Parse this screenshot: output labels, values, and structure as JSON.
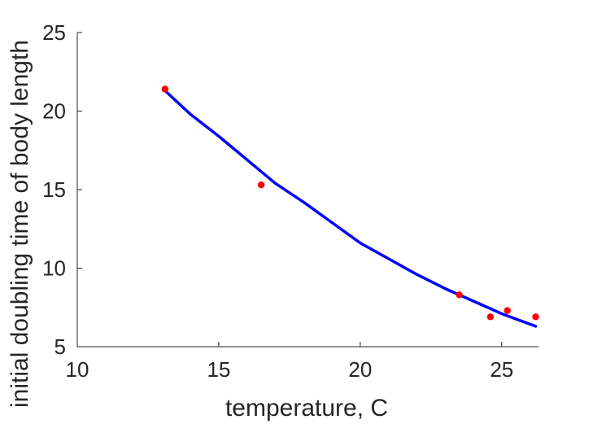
{
  "chart_data": {
    "type": "scatter",
    "xlabel": "temperature, C",
    "ylabel": "initial doubling time of body length",
    "xlim": [
      10,
      26.3
    ],
    "ylim": [
      5,
      25
    ],
    "x_ticks": [
      10,
      15,
      20,
      25
    ],
    "y_ticks": [
      5,
      10,
      15,
      20,
      25
    ],
    "x_tick_labels": [
      "10",
      "15",
      "20",
      "25"
    ],
    "y_tick_labels": [
      "5",
      "10",
      "15",
      "20",
      "25"
    ],
    "grid": false,
    "legend": "none",
    "series": [
      {
        "kind": "points",
        "color": "#ff0000",
        "x": [
          13.1,
          16.5,
          23.5,
          24.6,
          25.2,
          26.2
        ],
        "y": [
          21.4,
          15.3,
          8.3,
          6.9,
          7.3,
          6.9
        ]
      },
      {
        "kind": "fit-line",
        "color": "#0000ff",
        "x": [
          13.1,
          14.0,
          15.0,
          16.0,
          17.0,
          18.0,
          19.0,
          20.0,
          21.0,
          22.0,
          23.0,
          24.0,
          25.0,
          26.2
        ],
        "y": [
          21.3,
          19.8,
          18.4,
          16.9,
          15.4,
          14.2,
          12.9,
          11.6,
          10.6,
          9.6,
          8.7,
          7.9,
          7.1,
          6.3
        ]
      }
    ]
  }
}
